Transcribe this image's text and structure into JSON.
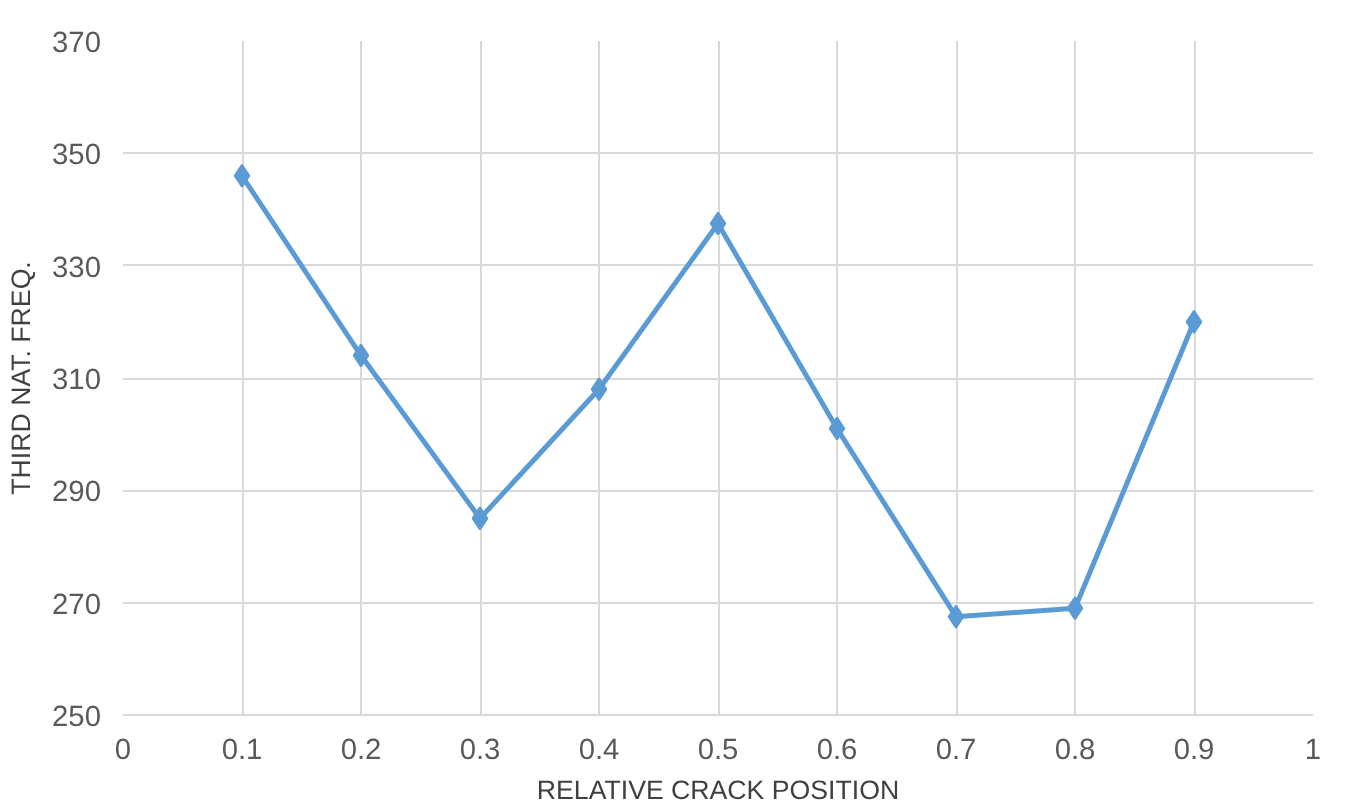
{
  "chart_data": {
    "type": "line",
    "xlabel": "RELATIVE CRACK POSITION",
    "ylabel": "THIRD NAT. FREQ.",
    "x": [
      0.1,
      0.2,
      0.3,
      0.4,
      0.5,
      0.6,
      0.7,
      0.8,
      0.9
    ],
    "series": [
      {
        "color": "#5b9bd5",
        "values": [
          346,
          314,
          285,
          308,
          337.5,
          301,
          267.5,
          269,
          320
        ]
      }
    ],
    "xlim": [
      0,
      1
    ],
    "xticks": [
      0,
      0.1,
      0.2,
      0.3,
      0.4,
      0.5,
      0.6,
      0.7,
      0.8,
      0.9,
      1
    ],
    "ylim": [
      250,
      370
    ],
    "yticks": [
      250,
      270,
      290,
      310,
      330,
      350,
      370
    ],
    "grid": true,
    "marker": "diamond",
    "line_style": "solid"
  }
}
